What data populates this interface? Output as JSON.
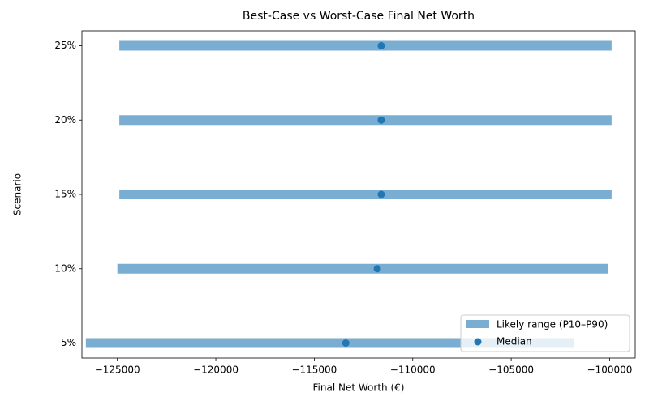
{
  "chart_data": {
    "type": "range",
    "title": "Best-Case vs Worst-Case Final Net Worth",
    "xlabel": "Final Net Worth (€)",
    "ylabel": "Scenario",
    "categories": [
      "5%",
      "10%",
      "15%",
      "20%",
      "25%"
    ],
    "ranges": {
      "name": "Likely range (P10–P90)",
      "color": "#1f77b4",
      "alpha": 0.6,
      "low": [
        -126600,
        -125000,
        -124900,
        -124900,
        -124900
      ],
      "high": [
        -101800,
        -100100,
        -99900,
        -99900,
        -99900
      ]
    },
    "medians": {
      "name": "Median",
      "color": "#1f77b4",
      "values": [
        -113400,
        -111800,
        -111600,
        -111600,
        -111600
      ]
    },
    "xlim": [
      -126800,
      -98700
    ],
    "xticks": [
      {
        "value": -125000,
        "label": "−125000"
      },
      {
        "value": -120000,
        "label": "−120000"
      },
      {
        "value": -115000,
        "label": "−115000"
      },
      {
        "value": -110000,
        "label": "−110000"
      },
      {
        "value": -105000,
        "label": "−105000"
      },
      {
        "value": -100000,
        "label": "−100000"
      }
    ],
    "legend": "lower right"
  }
}
